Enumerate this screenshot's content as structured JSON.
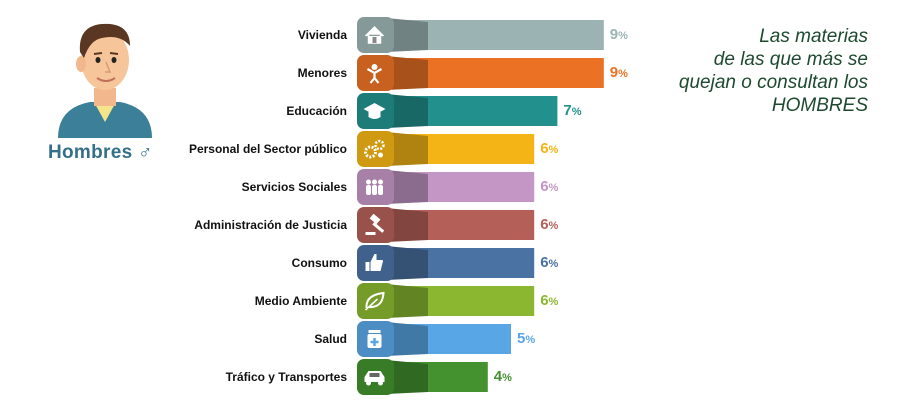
{
  "header": {
    "gender_label": "Hombres",
    "headline_lines": [
      "Las materias",
      "de las que más se",
      "quejan o consultan los",
      "HOMBRES"
    ]
  },
  "chart_data": {
    "type": "bar",
    "orientation": "horizontal",
    "title": "",
    "xlabel": "",
    "ylabel": "",
    "categories": [
      "Vivienda",
      "Menores",
      "Educación",
      "Personal del Sector público",
      "Servicios Sociales",
      "Administración de Justicia",
      "Consumo",
      "Medio Ambiente",
      "Salud",
      "Tráfico y Transportes"
    ],
    "values": [
      9,
      9,
      7,
      6,
      6,
      6,
      6,
      6,
      5,
      4
    ],
    "value_labels": [
      "9",
      "9",
      "7",
      "6",
      "6",
      "6",
      "6",
      "6",
      "5",
      "4"
    ],
    "unit": "%",
    "colors": [
      "#9bb4b3",
      "#eb7124",
      "#22918d",
      "#f4b415",
      "#c396c5",
      "#b46058",
      "#4a72a3",
      "#8ab72f",
      "#59a6e6",
      "#43922f"
    ],
    "icons": [
      "house-icon",
      "child-icon",
      "graduation-cap-icon",
      "gears-icon",
      "people-icon",
      "gavel-icon",
      "thumbs-up-icon",
      "leaf-icon",
      "medicine-icon",
      "car-icon"
    ],
    "xlim": [
      0,
      9
    ],
    "grid": false,
    "legend": "none"
  }
}
